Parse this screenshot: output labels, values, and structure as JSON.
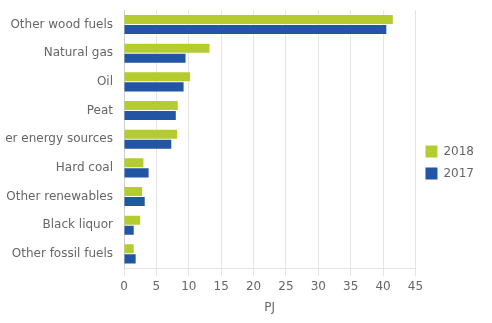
{
  "chart_data": {
    "type": "bar",
    "orientation": "horizontal",
    "categories": [
      "Other fossil fuels",
      "Black liquor",
      "Other renewables",
      "Hard coal",
      "Other energy sources",
      "Peat",
      "Oil",
      "Natural gas",
      "Other wood fuels"
    ],
    "series": [
      {
        "name": "2018",
        "color": "#b5cc2e",
        "values": [
          1.5,
          2.5,
          2.8,
          3.0,
          8.2,
          8.3,
          10.2,
          13.2,
          41.5
        ]
      },
      {
        "name": "2017",
        "color": "#2255a4",
        "values": [
          1.8,
          1.5,
          3.2,
          3.8,
          7.3,
          8.0,
          9.2,
          9.5,
          40.5
        ]
      }
    ],
    "xlabel": "PJ",
    "xlim": [
      0,
      45
    ],
    "xticks": [
      0,
      5,
      10,
      15,
      20,
      25,
      30,
      35,
      40,
      45
    ],
    "grid": true,
    "legend": "right"
  }
}
